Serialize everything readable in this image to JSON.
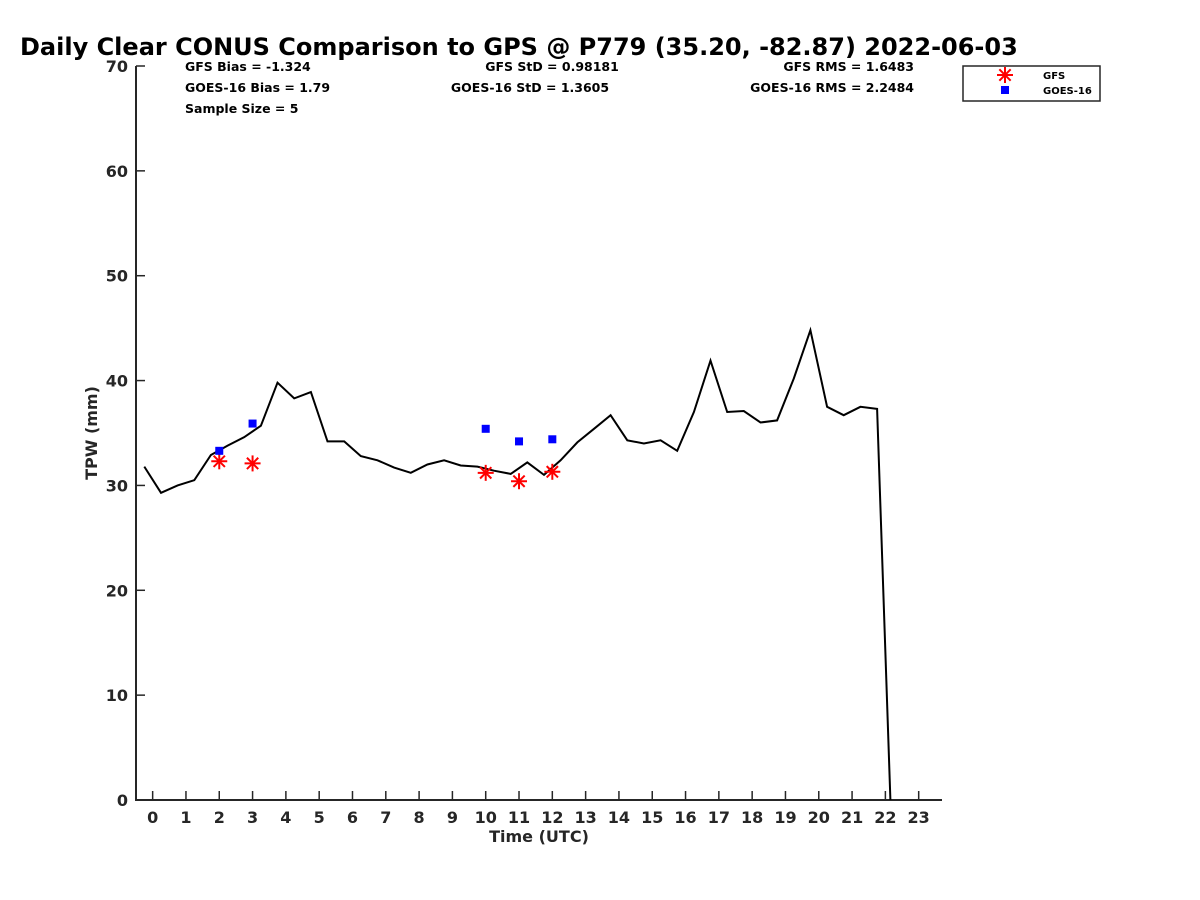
{
  "chart_data": {
    "type": "line",
    "title": "Daily Clear CONUS Comparison to GPS @ P779 (35.20, -82.87) 2022-06-03",
    "xlabel": "Time (UTC)",
    "ylabel": "TPW (mm)",
    "xlim": [
      -0.5,
      23.7
    ],
    "ylim": [
      0,
      70
    ],
    "x_ticks": [
      0,
      1,
      2,
      3,
      4,
      5,
      6,
      7,
      8,
      9,
      10,
      11,
      12,
      13,
      14,
      15,
      16,
      17,
      18,
      19,
      20,
      21,
      22,
      23
    ],
    "y_ticks": [
      0,
      10,
      20,
      30,
      40,
      50,
      60,
      70
    ],
    "legend_position": "top-right",
    "stats": {
      "gfs_bias": "GFS Bias = -1.324",
      "goes_bias": "GOES-16 Bias = 1.79",
      "sample_size": "Sample Size = 5",
      "gfs_std": "GFS StD = 0.98181",
      "goes_std": "GOES-16 StD = 1.3605",
      "gfs_rms": "GFS RMS = 1.6483",
      "goes_rms": "GOES-16 RMS = 2.2484"
    },
    "series": [
      {
        "kind": "line",
        "color": "#000000",
        "x": [
          -0.25,
          0.25,
          0.75,
          1.25,
          1.75,
          2.25,
          2.75,
          3.25,
          3.75,
          4.25,
          4.75,
          5.25,
          5.75,
          6.25,
          6.75,
          7.25,
          7.75,
          8.25,
          8.75,
          9.25,
          9.75,
          10.25,
          10.75,
          11.25,
          11.75,
          12.25,
          12.75,
          13.25,
          13.75,
          14.25,
          14.75,
          15.25,
          15.75,
          16.25,
          16.75,
          17.25,
          17.75,
          18.25,
          18.75,
          19.25,
          19.75,
          20.25,
          20.75,
          21.25,
          21.75,
          22.15
        ],
        "y": [
          31.8,
          29.3,
          30.0,
          30.5,
          32.9,
          33.8,
          34.6,
          35.7,
          39.8,
          38.3,
          38.9,
          34.2,
          34.2,
          32.8,
          32.4,
          31.7,
          31.2,
          32.0,
          32.4,
          31.9,
          31.8,
          31.4,
          31.1,
          32.2,
          31.0,
          32.4,
          34.1,
          35.4,
          36.7,
          34.3,
          34.0,
          34.3,
          33.3,
          37.0,
          41.9,
          37.0,
          37.1,
          36.0,
          36.2,
          40.2,
          44.8,
          37.5,
          36.7,
          37.5,
          37.3,
          0.0
        ]
      },
      {
        "name": "GFS",
        "kind": "asterisk",
        "color": "#ff0000",
        "x": [
          2.0,
          3.0,
          10.0,
          11.0,
          12.0
        ],
        "y": [
          32.3,
          32.1,
          31.2,
          30.4,
          31.3
        ]
      },
      {
        "name": "GOES-16",
        "kind": "square",
        "color": "#0000ff",
        "x": [
          2.0,
          3.0,
          10.0,
          11.0,
          12.0
        ],
        "y": [
          33.3,
          35.9,
          35.4,
          34.2,
          34.4
        ]
      }
    ]
  }
}
